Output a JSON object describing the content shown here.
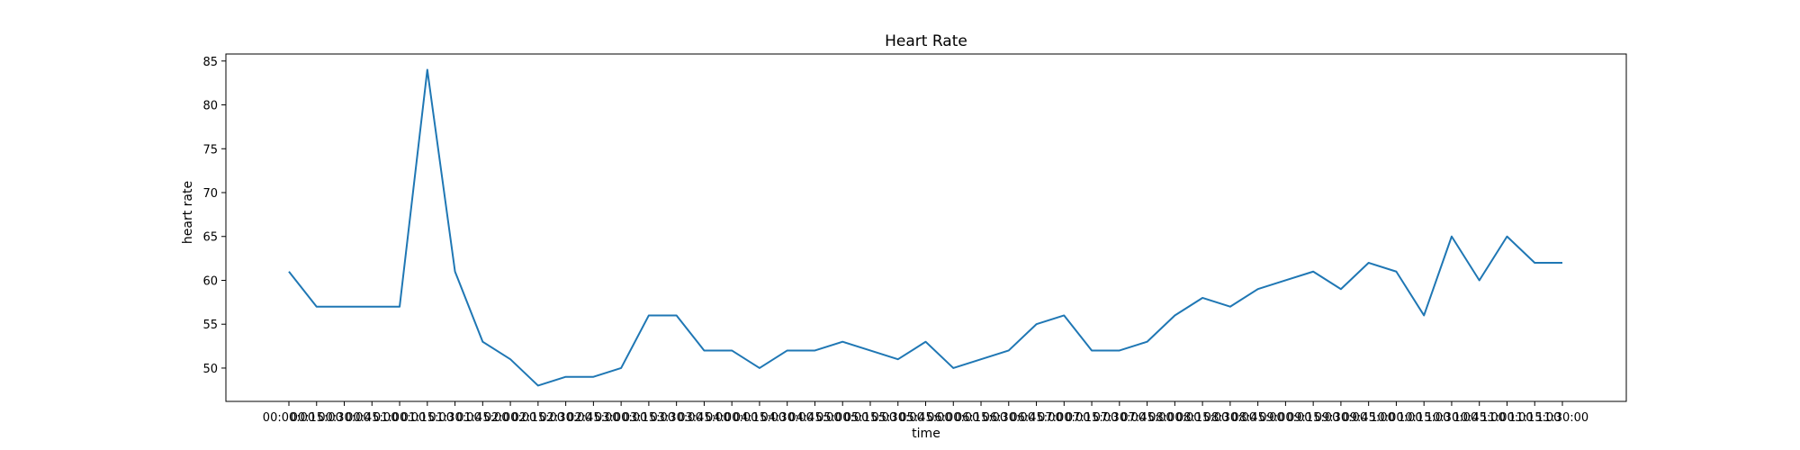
{
  "chart_data": {
    "type": "line",
    "title": "Heart Rate",
    "xlabel": "time",
    "ylabel": "heart rate",
    "x": [
      "00:00:00",
      "00:15:00",
      "00:30:00",
      "00:45:00",
      "01:00:00",
      "01:15:00",
      "01:30:00",
      "01:45:00",
      "02:00:00",
      "02:15:00",
      "02:30:00",
      "02:45:00",
      "03:00:00",
      "03:15:00",
      "03:30:00",
      "03:45:00",
      "04:00:00",
      "04:15:00",
      "04:30:00",
      "04:45:00",
      "05:00:00",
      "05:15:00",
      "05:30:00",
      "05:45:00",
      "06:00:00",
      "06:15:00",
      "06:30:00",
      "06:45:00",
      "07:00:00",
      "07:15:00",
      "07:30:00",
      "07:45:00",
      "08:00:00",
      "08:15:00",
      "08:30:00",
      "08:45:00",
      "09:00:00",
      "09:15:00",
      "09:30:00",
      "09:45:00",
      "10:00:00",
      "10:15:00",
      "10:30:00",
      "10:45:00",
      "11:00:00",
      "11:15:00",
      "11:30:00"
    ],
    "series": [
      {
        "values": [
          61,
          57,
          57,
          57,
          57,
          84,
          61,
          53,
          51,
          48,
          49,
          49,
          50,
          56,
          56,
          52,
          52,
          50,
          52,
          52,
          53,
          52,
          51,
          53,
          50,
          51,
          52,
          55,
          56,
          52,
          52,
          53,
          56,
          58,
          57,
          59,
          60,
          61,
          59,
          62,
          61,
          56,
          65,
          60,
          65,
          62,
          62
        ],
        "color": "#1f77b4"
      }
    ],
    "ylim": [
      46.2,
      85.8
    ],
    "yticks": [
      50,
      55,
      60,
      65,
      70,
      75,
      80,
      85
    ],
    "grid": false
  }
}
